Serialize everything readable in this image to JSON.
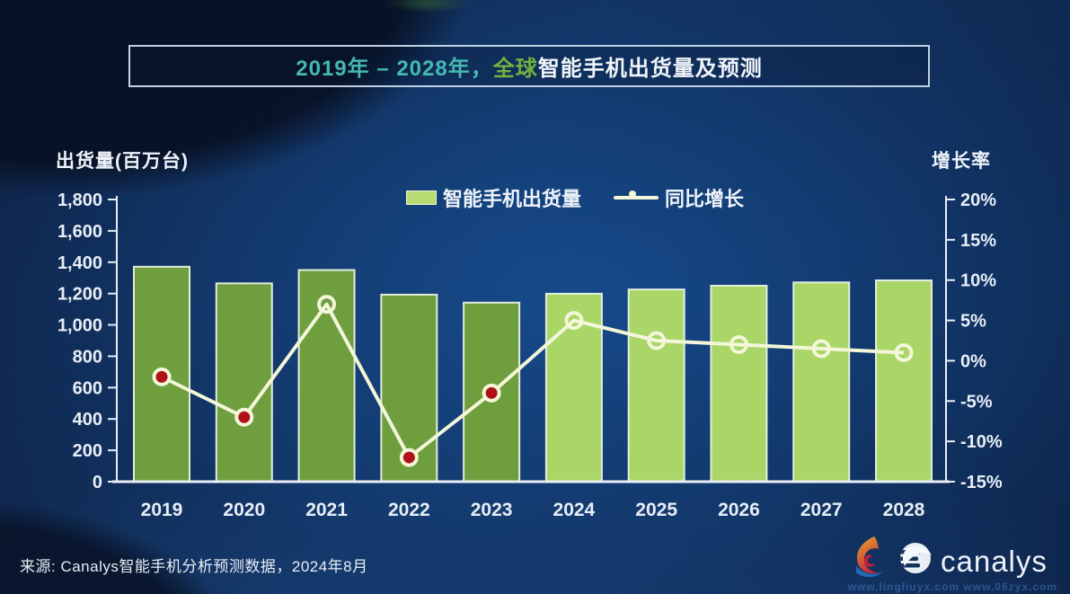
{
  "title": {
    "range": "2019年 – 2028年，",
    "highlight": "全球",
    "rest": "智能手机出货量及预测"
  },
  "axes": {
    "left_label": "出货量(百万台)",
    "right_label": "增长率"
  },
  "legend": [
    {
      "label": "智能手机出货量",
      "swatch": "bar-swatch-green"
    },
    {
      "label": "同比增长",
      "swatch": "line-marker"
    }
  ],
  "source": "来源: Canalys智能手机分析预测数据，2024年8月",
  "logo": {
    "text": "canalys",
    "mark": "canalys-sphere-icon",
    "extra_mark": "flame-swirl-icon"
  },
  "watermark": "www.lingliuyx.com   www.06zyx.com",
  "chart_data": {
    "type": "bar",
    "subtype": "bar+line combo",
    "title": "2019年 – 2028年，全球智能手机出货量及预测",
    "categories": [
      "2019",
      "2020",
      "2021",
      "2022",
      "2023",
      "2024",
      "2025",
      "2026",
      "2027",
      "2028"
    ],
    "series": [
      {
        "name": "智能手机出货量",
        "type": "bar",
        "axis": "left",
        "unit": "百万台",
        "values": [
          1371,
          1265,
          1350,
          1193,
          1142,
          1199,
          1226,
          1250,
          1271,
          1284
        ],
        "actual_years_count": 5,
        "color_actual": "#6f9e3e",
        "color_forecast": "#a9d666",
        "bar_border": "rgba(233,243,230,0.95)"
      },
      {
        "name": "同比增长",
        "type": "line",
        "axis": "right",
        "unit": "%",
        "values": [
          -2,
          -7,
          7,
          -12,
          -4,
          5,
          2.5,
          2,
          1.5,
          1
        ],
        "marker_style": [
          "red",
          "red",
          "hollow",
          "red",
          "red",
          "hollow",
          "hollow",
          "hollow",
          "hollow",
          "hollow"
        ],
        "line_color": "#f3f6d8",
        "marker_red_fill": "#ae1117"
      }
    ],
    "left_axis": {
      "label": "出货量(百万台)",
      "min": 0,
      "max": 1800,
      "step": 200,
      "tick_labels": [
        "1,800",
        "1,600",
        "1,400",
        "1,200",
        "1,000",
        "800",
        "600",
        "400",
        "200",
        "0"
      ]
    },
    "right_axis": {
      "label": "增长率",
      "min": -15,
      "max": 20,
      "step": 5,
      "tick_labels": [
        "20%",
        "15%",
        "10%",
        "5%",
        "0%",
        "-5%",
        "-10%",
        "-15%"
      ]
    },
    "grid": false,
    "legend_position": "top-center",
    "tick_color": "#e8eef7",
    "axis_color": "#e9eef6"
  }
}
